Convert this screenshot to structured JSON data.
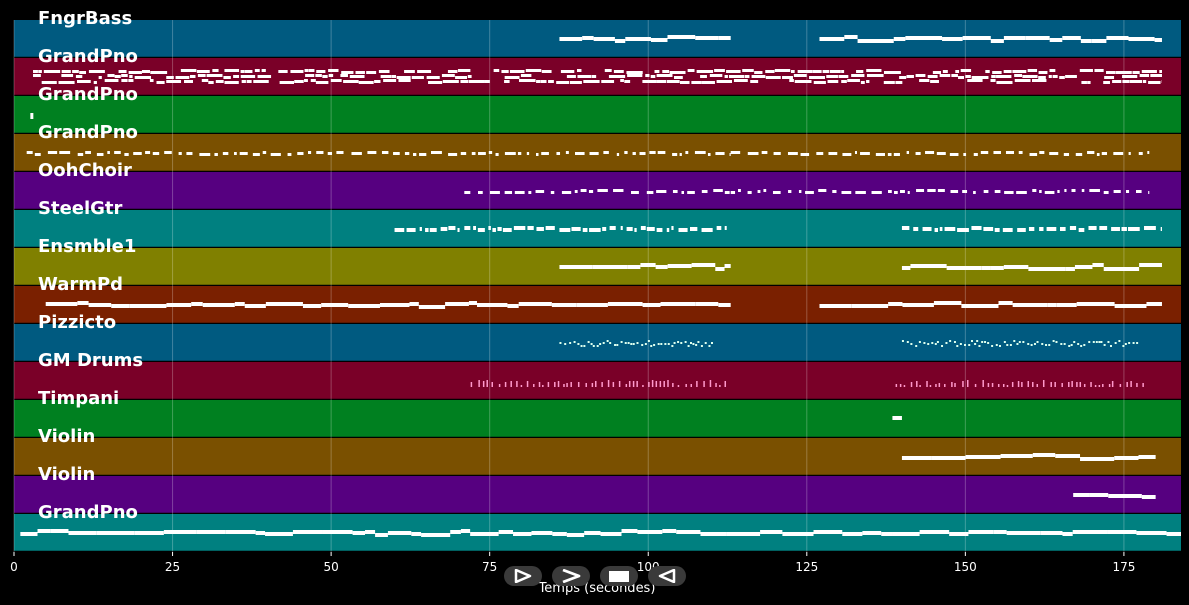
{
  "chart_data": {
    "type": "piano-roll",
    "xlabel": "Temps (secondes)",
    "xlim": [
      0,
      184
    ],
    "x_ticks": [
      0,
      25,
      50,
      75,
      100,
      125,
      150,
      175
    ],
    "grid": true,
    "tracks": [
      {
        "name": "FngrBass",
        "color": "#005a80",
        "segments": [
          [
            86,
            113
          ],
          [
            127,
            181
          ]
        ],
        "style": "line"
      },
      {
        "name": "GrandPno",
        "color": "#7a0028",
        "segments": [
          [
            3,
            181
          ]
        ],
        "style": "dense"
      },
      {
        "name": "GrandPno",
        "color": "#008020",
        "segments": [
          [
            1,
            1.2
          ]
        ],
        "style": "dot"
      },
      {
        "name": "GrandPno",
        "color": "#7a5000",
        "segments": [
          [
            2,
            113
          ],
          [
            113,
            179
          ]
        ],
        "style": "dashed"
      },
      {
        "name": "OohChoir",
        "color": "#560080",
        "segments": [
          [
            71,
            113
          ],
          [
            113,
            179
          ]
        ],
        "style": "dashed"
      },
      {
        "name": "SteelGtr",
        "color": "#008080",
        "segments": [
          [
            60,
            86
          ],
          [
            86,
            113
          ],
          [
            140,
            181
          ]
        ],
        "style": "gtr"
      },
      {
        "name": "Ensmble1",
        "color": "#808000",
        "segments": [
          [
            86,
            113
          ],
          [
            140,
            181
          ]
        ],
        "style": "line"
      },
      {
        "name": "WarmPd",
        "color": "#7a2000",
        "segments": [
          [
            5,
            113
          ],
          [
            127,
            181
          ]
        ],
        "style": "line"
      },
      {
        "name": "Pizzicto",
        "color": "#005a80",
        "segments": [
          [
            86,
            110
          ],
          [
            140,
            177
          ]
        ],
        "style": "pizz"
      },
      {
        "name": "GM Drums",
        "color": "#7a0028",
        "segments": [
          [
            72,
            113
          ],
          [
            139,
            178
          ]
        ],
        "style": "drums"
      },
      {
        "name": "Timpani",
        "color": "#008020",
        "segments": [
          [
            138.5,
            140
          ]
        ],
        "style": "line"
      },
      {
        "name": "Violin",
        "color": "#7a5000",
        "segments": [
          [
            140,
            180
          ]
        ],
        "style": "line"
      },
      {
        "name": "Violin",
        "color": "#560080",
        "segments": [
          [
            167,
            180
          ]
        ],
        "style": "line"
      },
      {
        "name": "GrandPno",
        "color": "#008080",
        "segments": [
          [
            1,
            184
          ]
        ],
        "style": "line"
      }
    ]
  },
  "controls": {
    "play_icon": "play-icon",
    "fast_forward_icon": "fast-forward-icon",
    "stop_icon": "stop-icon",
    "rewind_icon": "rewind-icon"
  }
}
